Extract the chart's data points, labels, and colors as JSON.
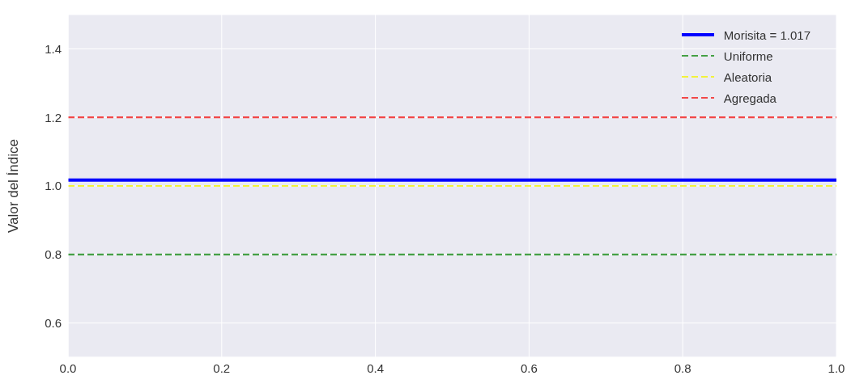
{
  "chart_data": {
    "type": "line",
    "ylabel": "Valor del Índice",
    "xlim": [
      0,
      1
    ],
    "xticks": [
      {
        "value": 0,
        "label": "0.0"
      },
      0.2,
      0.4,
      0.6,
      0.8,
      {
        "value": 1,
        "label": "1.0"
      }
    ],
    "ylim": [
      0.5,
      1.5
    ],
    "yticks": [
      0.6,
      0.8,
      {
        "value": 1,
        "label": "1.0"
      },
      1.2,
      1.4
    ],
    "grid": true,
    "legend": "top right",
    "ref_lines": [
      {
        "axis": "y",
        "value": 1.017,
        "label": "Morisita = 1.017",
        "color": "#0000ff",
        "line_style": "solid"
      },
      {
        "axis": "y",
        "value": 0.8,
        "label": "Uniforme",
        "color": "#45a045",
        "line_style": "dashed"
      },
      {
        "axis": "y",
        "value": 1.0,
        "label": "Aleatoria",
        "color": "#f2f23a",
        "line_style": "dashed"
      },
      {
        "axis": "y",
        "value": 1.2,
        "label": "Agregada",
        "color": "#f24848",
        "line_style": "dashed"
      }
    ]
  }
}
